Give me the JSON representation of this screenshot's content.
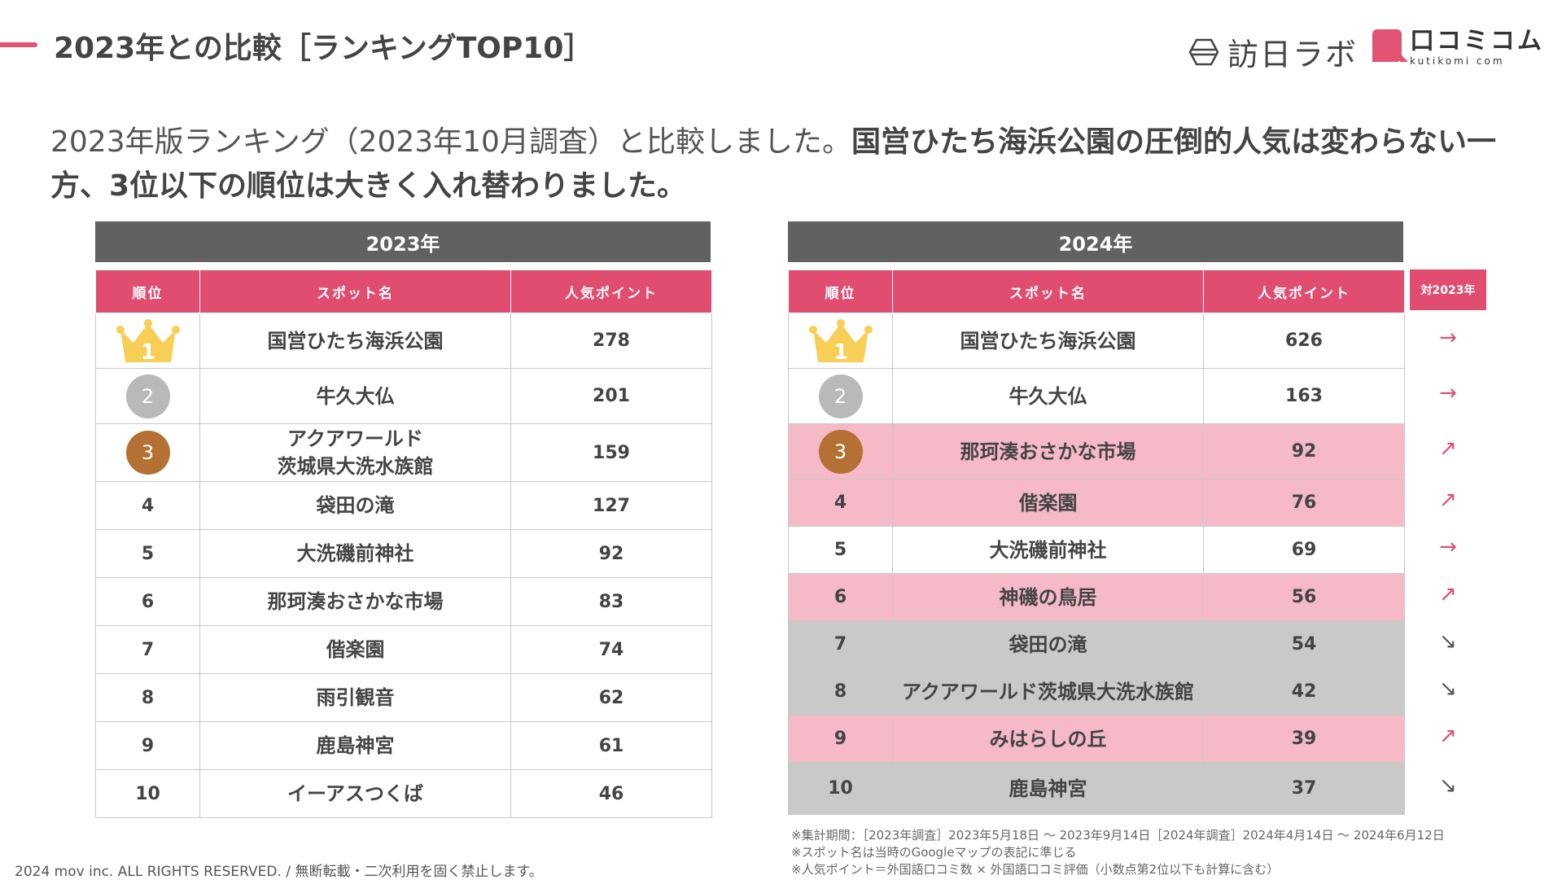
{
  "header": {
    "title": "2023年との比較［ランキングTOP10］",
    "logo_hounichi": "訪日ラボ",
    "logo_kutikomi": "口コミコム",
    "logo_kutikomi_en": "kutikomi com"
  },
  "lead": {
    "part1": "2023年版ランキング（2023年10月調査）と比較しました。",
    "part2": "国営ひたち海浜公園の圧倒的人気は変わらない一方、3位以下の順位は大きく入れ替わりました。"
  },
  "columns": {
    "rank": "順位",
    "spot": "スポット名",
    "points": "人気ポイント",
    "trend": "対2023年"
  },
  "table2023": {
    "year": "2023年",
    "rows": [
      {
        "rank": "1",
        "spot": "国営ひたち海浜公園",
        "points": "278"
      },
      {
        "rank": "2",
        "spot": "牛久大仏",
        "points": "201"
      },
      {
        "rank": "3",
        "spot": "アクアワールド\n茨城県大洗水族館",
        "points": "159"
      },
      {
        "rank": "4",
        "spot": "袋田の滝",
        "points": "127"
      },
      {
        "rank": "5",
        "spot": "大洗磯前神社",
        "points": "92"
      },
      {
        "rank": "6",
        "spot": "那珂湊おさかな市場",
        "points": "83"
      },
      {
        "rank": "7",
        "spot": "偕楽園",
        "points": "74"
      },
      {
        "rank": "8",
        "spot": "雨引観音",
        "points": "62"
      },
      {
        "rank": "9",
        "spot": "鹿島神宮",
        "points": "61"
      },
      {
        "rank": "10",
        "spot": "イーアスつくば",
        "points": "46"
      }
    ]
  },
  "table2024": {
    "year": "2024年",
    "rows": [
      {
        "rank": "1",
        "spot": "国営ひたち海浜公園",
        "points": "626",
        "trend": "→",
        "status": "flat"
      },
      {
        "rank": "2",
        "spot": "牛久大仏",
        "points": "163",
        "trend": "→",
        "status": "flat"
      },
      {
        "rank": "3",
        "spot": "那珂湊おさかな市場",
        "points": "92",
        "trend": "↗",
        "status": "up"
      },
      {
        "rank": "4",
        "spot": "偕楽園",
        "points": "76",
        "trend": "↗",
        "status": "up"
      },
      {
        "rank": "5",
        "spot": "大洗磯前神社",
        "points": "69",
        "trend": "→",
        "status": "flat"
      },
      {
        "rank": "6",
        "spot": "神磯の鳥居",
        "points": "56",
        "trend": "↗",
        "status": "up"
      },
      {
        "rank": "7",
        "spot": "袋田の滝",
        "points": "54",
        "trend": "↘",
        "status": "down"
      },
      {
        "rank": "8",
        "spot": "アクアワールド茨城県大洗水族館",
        "points": "42",
        "trend": "↘",
        "status": "down"
      },
      {
        "rank": "9",
        "spot": "みはらしの丘",
        "points": "39",
        "trend": "↗",
        "status": "up"
      },
      {
        "rank": "10",
        "spot": "鹿島神宮",
        "points": "37",
        "trend": "↘",
        "status": "down"
      }
    ]
  },
  "notes": [
    "※集計期間：［2023年調査］2023年5月18日 〜 2023年9月14日［2024年調査］2024年4月14日 〜 2024年6月12日",
    "※スポット名は当時のGoogleマップの表記に準じる",
    "※人気ポイント＝外国語口コミ数 × 外国語口コミ評価（小数点第2位以下も計算に含む）"
  ],
  "footer": "2024 mov inc. ALL RIGHTS RESERVED. / 無断転載・二次利用を固く禁止します。",
  "colors": {
    "accent": "#e04d70",
    "header_gray": "#616161",
    "up_row": "#f5b9c7",
    "down_row": "#c9c9c9",
    "silver": "#b9b9b9",
    "bronze": "#b47133",
    "gold": "#f7cf57"
  }
}
